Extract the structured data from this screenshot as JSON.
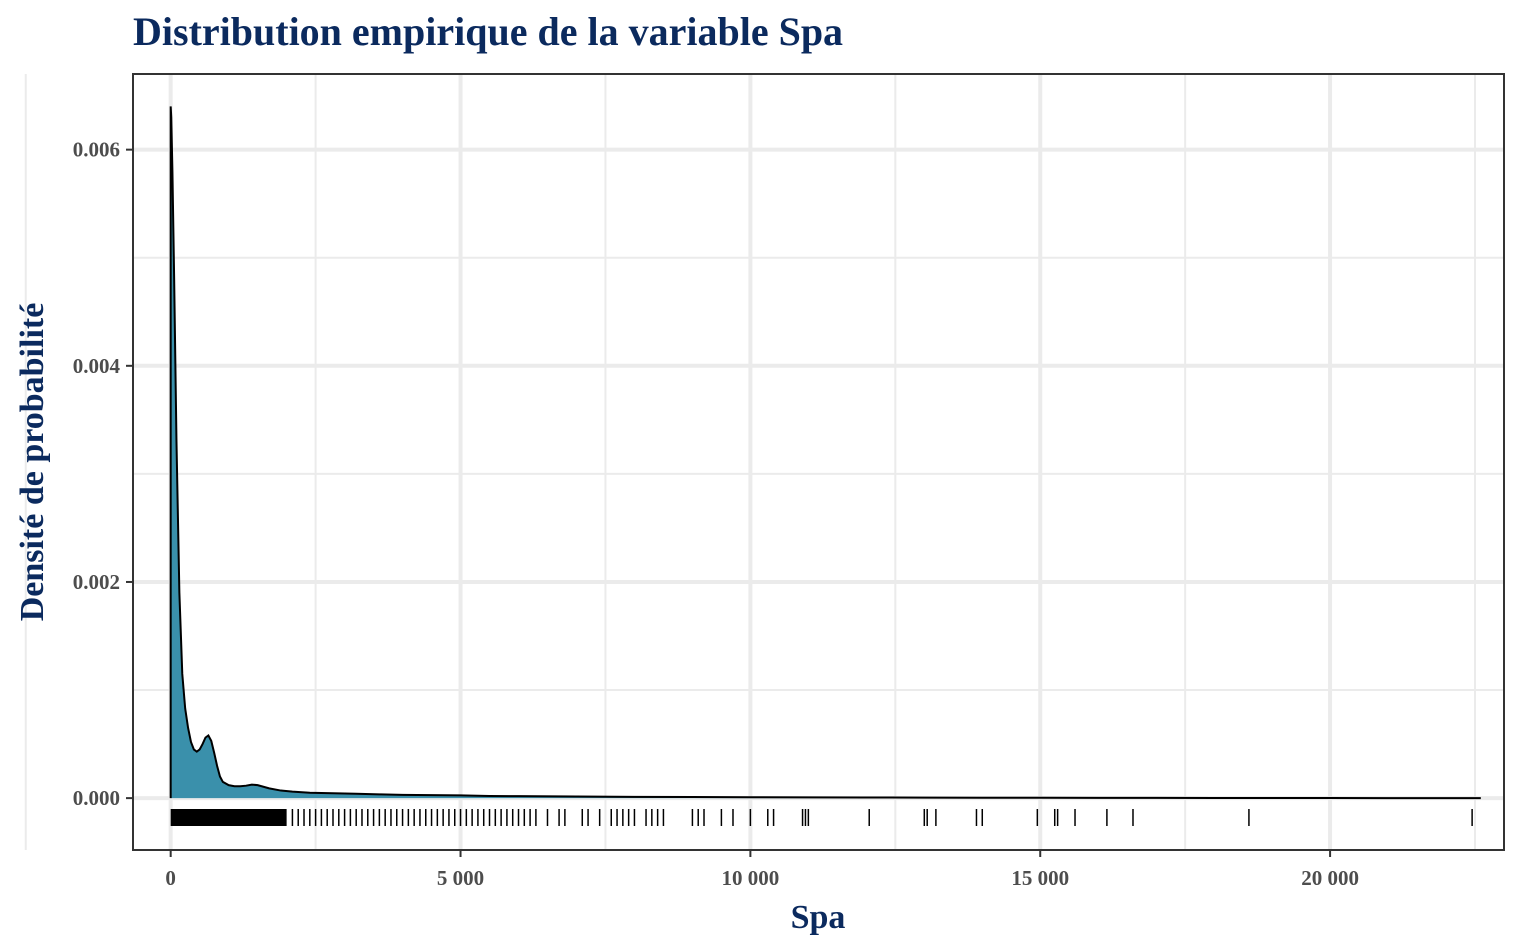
{
  "chart_data": {
    "type": "area",
    "title": "Distribution empirique de la variable Spa",
    "xlabel": "Spa",
    "ylabel": "Densité de probabilité",
    "xlim": [
      -650,
      23000
    ],
    "ylim": [
      -0.00048,
      0.0067
    ],
    "x_ticks": [
      0,
      5000,
      10000,
      15000,
      20000
    ],
    "x_tick_labels": [
      "0",
      "5 000",
      "10 000",
      "15 000",
      "20 000"
    ],
    "y_ticks": [
      0.0,
      0.002,
      0.004,
      0.006
    ],
    "y_tick_labels": [
      "0.000",
      "0.002",
      "0.004",
      "0.006"
    ],
    "grid": true,
    "fill_color": "#3a90ab",
    "line_color": "#000000",
    "series": [
      {
        "x": [
          0,
          10,
          30,
          60,
          100,
          150,
          200,
          250,
          300,
          350,
          400,
          450,
          500,
          550,
          600,
          650,
          700,
          750,
          800,
          850,
          900,
          1000,
          1100,
          1200,
          1300,
          1400,
          1500,
          1700,
          1900,
          2100,
          2400,
          2800,
          3200,
          3600,
          4000,
          4500,
          5000,
          5500,
          6000,
          7000,
          8000,
          9000,
          10000,
          11000,
          12000,
          13000,
          14000,
          15000,
          16000,
          17000,
          18000,
          19000,
          20000,
          21000,
          22000,
          22600
        ],
        "y": [
          0.0064,
          0.0063,
          0.0058,
          0.0048,
          0.0033,
          0.0019,
          0.00115,
          0.00083,
          0.00065,
          0.00052,
          0.00045,
          0.00043,
          0.00045,
          0.0005,
          0.00056,
          0.00058,
          0.00053,
          0.00042,
          0.0003,
          0.0002,
          0.00015,
          0.00012,
          0.00011,
          0.00011,
          0.000115,
          0.000125,
          0.00012,
          9e-05,
          7e-05,
          6e-05,
          5e-05,
          4.5e-05,
          4e-05,
          3.5e-05,
          3e-05,
          2.8e-05,
          2.5e-05,
          2e-05,
          1.8e-05,
          1.5e-05,
          1.2e-05,
          1e-05,
          8e-06,
          7e-06,
          6e-06,
          5e-06,
          4e-06,
          3e-06,
          2e-06,
          2e-06,
          1e-06,
          1e-06,
          1e-06,
          5e-07,
          5e-07,
          3e-07
        ]
      }
    ],
    "rug_dense_range": [
      0,
      2000
    ],
    "rug_x": [
      2100,
      2200,
      2300,
      2400,
      2500,
      2600,
      2700,
      2800,
      2900,
      3000,
      3100,
      3200,
      3300,
      3400,
      3500,
      3600,
      3700,
      3800,
      3900,
      4000,
      4100,
      4200,
      4300,
      4400,
      4500,
      4600,
      4700,
      4800,
      4900,
      5000,
      5100,
      5200,
      5300,
      5400,
      5500,
      5600,
      5700,
      5800,
      5900,
      6000,
      6100,
      6200,
      6300,
      6500,
      6700,
      6800,
      7100,
      7200,
      7400,
      7600,
      7700,
      7800,
      7900,
      8000,
      8200,
      8300,
      8400,
      8500,
      9000,
      9100,
      9200,
      9500,
      9700,
      10000,
      10300,
      10400,
      10900,
      10950,
      11000,
      12050,
      13000,
      13050,
      13200,
      13900,
      14000,
      14950,
      15250,
      15300,
      15600,
      16150,
      16600,
      18600,
      22450
    ]
  }
}
